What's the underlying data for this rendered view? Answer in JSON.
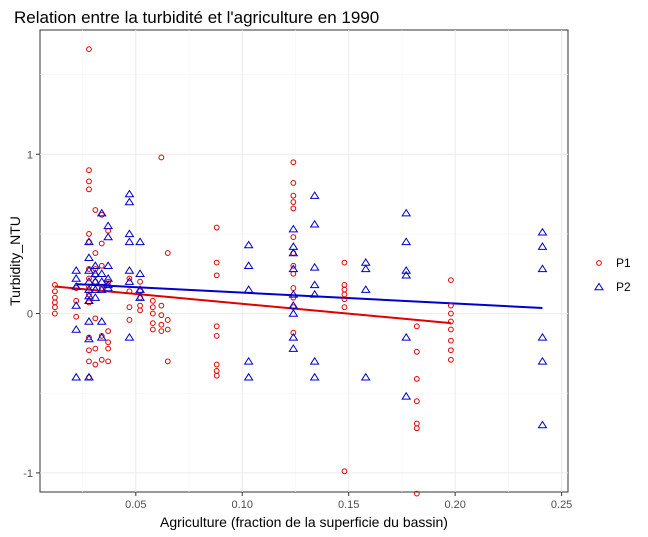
{
  "chart_data": {
    "type": "scatter",
    "title": "Relation entre la turbidité et l'agriculture en 1990",
    "xlabel": "Agriculture (fraction de la superficie du bassin)",
    "ylabel": "Turbidity_NTU",
    "xlim": [
      0.005,
      0.253
    ],
    "ylim": [
      -1.12,
      1.78
    ],
    "x_ticks": [
      0.05,
      0.1,
      0.15,
      0.2,
      0.25
    ],
    "x_tick_labels": [
      "0.05",
      "0.10",
      "0.15",
      "0.20",
      "0.25"
    ],
    "y_ticks": [
      -1,
      0,
      1
    ],
    "y_tick_labels": [
      "-1",
      "0",
      "1"
    ],
    "grid": true,
    "legend": {
      "position": "right",
      "entries": [
        "P1",
        "P2"
      ]
    },
    "series": [
      {
        "name": "P1",
        "color": "#e00000",
        "marker": "circle",
        "points": [
          [
            0.012,
            0.18
          ],
          [
            0.012,
            0.14
          ],
          [
            0.012,
            0.1
          ],
          [
            0.012,
            0.07
          ],
          [
            0.012,
            0.04
          ],
          [
            0.012,
            0.0
          ],
          [
            0.022,
            0.16
          ],
          [
            0.022,
            0.08
          ],
          [
            0.022,
            -0.02
          ],
          [
            0.028,
            1.66
          ],
          [
            0.028,
            0.9
          ],
          [
            0.028,
            0.83
          ],
          [
            0.028,
            0.78
          ],
          [
            0.028,
            0.5
          ],
          [
            0.028,
            0.45
          ],
          [
            0.028,
            0.28
          ],
          [
            0.028,
            0.22
          ],
          [
            0.028,
            0.17
          ],
          [
            0.028,
            0.12
          ],
          [
            0.028,
            0.07
          ],
          [
            0.028,
            -0.15
          ],
          [
            0.028,
            -0.23
          ],
          [
            0.028,
            -0.3
          ],
          [
            0.028,
            -0.4
          ],
          [
            0.031,
            0.65
          ],
          [
            0.031,
            0.38
          ],
          [
            0.031,
            0.28
          ],
          [
            0.031,
            0.24
          ],
          [
            0.031,
            0.2
          ],
          [
            0.031,
            -0.03
          ],
          [
            0.031,
            -0.22
          ],
          [
            0.031,
            -0.32
          ],
          [
            0.034,
            0.62
          ],
          [
            0.034,
            0.44
          ],
          [
            0.034,
            0.3
          ],
          [
            0.034,
            0.16
          ],
          [
            0.034,
            -0.14
          ],
          [
            0.034,
            -0.29
          ],
          [
            0.037,
            0.52
          ],
          [
            0.037,
            0.2
          ],
          [
            0.037,
            -0.11
          ],
          [
            0.037,
            -0.18
          ],
          [
            0.037,
            -0.22
          ],
          [
            0.037,
            -0.3
          ],
          [
            0.047,
            0.22
          ],
          [
            0.047,
            0.14
          ],
          [
            0.047,
            0.04
          ],
          [
            0.047,
            -0.04
          ],
          [
            0.052,
            0.2
          ],
          [
            0.052,
            0.14
          ],
          [
            0.052,
            0.1
          ],
          [
            0.052,
            0.05
          ],
          [
            0.052,
            0.02
          ],
          [
            0.058,
            0.08
          ],
          [
            0.058,
            0.04
          ],
          [
            0.058,
            0.0
          ],
          [
            0.058,
            -0.06
          ],
          [
            0.058,
            -0.1
          ],
          [
            0.062,
            0.98
          ],
          [
            0.062,
            0.05
          ],
          [
            0.062,
            -0.01
          ],
          [
            0.062,
            -0.07
          ],
          [
            0.062,
            -0.11
          ],
          [
            0.065,
            0.38
          ],
          [
            0.065,
            -0.04
          ],
          [
            0.065,
            -0.1
          ],
          [
            0.065,
            -0.3
          ],
          [
            0.088,
            0.54
          ],
          [
            0.088,
            0.32
          ],
          [
            0.088,
            0.24
          ],
          [
            0.088,
            -0.08
          ],
          [
            0.088,
            -0.14
          ],
          [
            0.088,
            -0.32
          ],
          [
            0.088,
            -0.36
          ],
          [
            0.088,
            -0.39
          ],
          [
            0.124,
            0.95
          ],
          [
            0.124,
            0.82
          ],
          [
            0.124,
            0.74
          ],
          [
            0.124,
            0.7
          ],
          [
            0.124,
            0.66
          ],
          [
            0.124,
            0.48
          ],
          [
            0.124,
            0.38
          ],
          [
            0.124,
            0.3
          ],
          [
            0.124,
            0.25
          ],
          [
            0.124,
            0.16
          ],
          [
            0.124,
            0.1
          ],
          [
            0.124,
            0.04
          ],
          [
            0.124,
            -0.12
          ],
          [
            0.148,
            0.32
          ],
          [
            0.148,
            0.18
          ],
          [
            0.148,
            0.15
          ],
          [
            0.148,
            0.12
          ],
          [
            0.148,
            0.09
          ],
          [
            0.148,
            0.04
          ],
          [
            0.148,
            -0.99
          ],
          [
            0.182,
            -0.08
          ],
          [
            0.182,
            -0.24
          ],
          [
            0.182,
            -0.41
          ],
          [
            0.182,
            -0.55
          ],
          [
            0.182,
            -0.69
          ],
          [
            0.182,
            -0.72
          ],
          [
            0.182,
            -1.13
          ],
          [
            0.198,
            0.21
          ],
          [
            0.198,
            0.05
          ],
          [
            0.198,
            0.0
          ],
          [
            0.198,
            -0.05
          ],
          [
            0.198,
            -0.1
          ],
          [
            0.198,
            -0.17
          ],
          [
            0.198,
            -0.23
          ],
          [
            0.198,
            -0.29
          ]
        ]
      },
      {
        "name": "P2",
        "color": "#0000cc",
        "marker": "triangle",
        "points": [
          [
            0.022,
            0.27
          ],
          [
            0.022,
            0.22
          ],
          [
            0.022,
            0.17
          ],
          [
            0.022,
            0.05
          ],
          [
            0.022,
            -0.1
          ],
          [
            0.022,
            -0.4
          ],
          [
            0.028,
            0.45
          ],
          [
            0.028,
            0.35
          ],
          [
            0.028,
            0.27
          ],
          [
            0.028,
            0.2
          ],
          [
            0.028,
            0.15
          ],
          [
            0.028,
            0.11
          ],
          [
            0.028,
            0.08
          ],
          [
            0.028,
            -0.05
          ],
          [
            0.028,
            -0.16
          ],
          [
            0.028,
            -0.4
          ],
          [
            0.031,
            0.3
          ],
          [
            0.031,
            0.25
          ],
          [
            0.031,
            0.2
          ],
          [
            0.031,
            0.15
          ],
          [
            0.031,
            0.1
          ],
          [
            0.034,
            0.63
          ],
          [
            0.034,
            0.25
          ],
          [
            0.034,
            0.2
          ],
          [
            0.034,
            0.15
          ],
          [
            0.034,
            -0.05
          ],
          [
            0.034,
            -0.15
          ],
          [
            0.037,
            0.55
          ],
          [
            0.037,
            0.48
          ],
          [
            0.037,
            0.3
          ],
          [
            0.037,
            0.22
          ],
          [
            0.037,
            0.18
          ],
          [
            0.037,
            0.16
          ],
          [
            0.047,
            0.75
          ],
          [
            0.047,
            0.7
          ],
          [
            0.047,
            0.5
          ],
          [
            0.047,
            0.45
          ],
          [
            0.047,
            0.27
          ],
          [
            0.047,
            0.2
          ],
          [
            0.047,
            -0.15
          ],
          [
            0.052,
            0.45
          ],
          [
            0.052,
            0.25
          ],
          [
            0.052,
            0.15
          ],
          [
            0.052,
            0.1
          ],
          [
            0.103,
            0.43
          ],
          [
            0.103,
            0.3
          ],
          [
            0.103,
            0.15
          ],
          [
            0.103,
            -0.3
          ],
          [
            0.103,
            -0.4
          ],
          [
            0.124,
            0.53
          ],
          [
            0.124,
            0.42
          ],
          [
            0.124,
            0.38
          ],
          [
            0.124,
            0.28
          ],
          [
            0.124,
            0.12
          ],
          [
            0.124,
            0.05
          ],
          [
            0.124,
            0.0
          ],
          [
            0.124,
            -0.15
          ],
          [
            0.124,
            -0.22
          ],
          [
            0.134,
            0.74
          ],
          [
            0.134,
            0.56
          ],
          [
            0.134,
            0.29
          ],
          [
            0.134,
            0.18
          ],
          [
            0.134,
            0.12
          ],
          [
            0.134,
            -0.3
          ],
          [
            0.134,
            -0.4
          ],
          [
            0.158,
            0.32
          ],
          [
            0.158,
            0.28
          ],
          [
            0.158,
            0.15
          ],
          [
            0.158,
            -0.4
          ],
          [
            0.177,
            0.63
          ],
          [
            0.177,
            0.45
          ],
          [
            0.177,
            0.27
          ],
          [
            0.177,
            0.24
          ],
          [
            0.177,
            -0.15
          ],
          [
            0.177,
            -0.52
          ],
          [
            0.241,
            0.51
          ],
          [
            0.241,
            0.42
          ],
          [
            0.241,
            0.28
          ],
          [
            0.241,
            -0.15
          ],
          [
            0.241,
            -0.3
          ],
          [
            0.241,
            -0.7
          ]
        ]
      }
    ],
    "trend_lines": [
      {
        "series": "P1",
        "color": "#e00000",
        "x": [
          0.012,
          0.198
        ],
        "y": [
          0.17,
          -0.06
        ]
      },
      {
        "series": "P2",
        "color": "#0000cc",
        "x": [
          0.022,
          0.241
        ],
        "y": [
          0.185,
          0.035
        ]
      }
    ]
  }
}
